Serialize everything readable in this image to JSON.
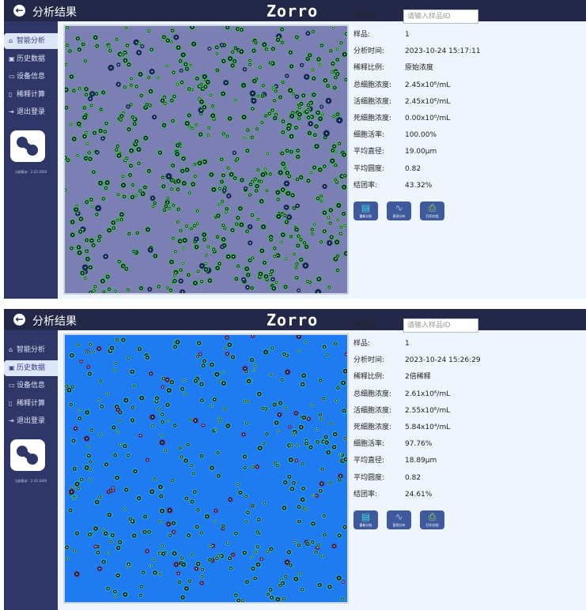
{
  "panels": [
    {
      "header": {
        "title": "分析结果",
        "brand": "Zorro"
      },
      "sidebar": {
        "items": [
          {
            "label": "智能分析",
            "icon": "home-icon"
          },
          {
            "label": "历史数据",
            "icon": "document-icon"
          },
          {
            "label": "设备信息",
            "icon": "device-icon"
          },
          {
            "label": "稀释计算",
            "icon": "calculator-icon"
          },
          {
            "label": "退出登录",
            "icon": "logout-icon"
          }
        ],
        "active": 0,
        "version": "当前版本：2.23.1020"
      },
      "image_tint": "#7b7fb3",
      "info": {
        "sample_id_label": "样品ID:",
        "sample_id_placeholder": "请输入样品ID",
        "rows": [
          {
            "label": "样品:",
            "value": "1"
          },
          {
            "label": "分析时间:",
            "value": "2023-10-24 15:17:11"
          },
          {
            "label": "稀释比例:",
            "value": "原始浓度"
          },
          {
            "label": "总细胞浓度:",
            "value": "2.45x10⁶/mL"
          },
          {
            "label": "活细胞浓度:",
            "value": "2.45x10⁶/mL"
          },
          {
            "label": "死细胞浓度:",
            "value": "0.00x10⁰/mL"
          },
          {
            "label": "细胞活率:",
            "value": "100.00%"
          },
          {
            "label": "平均直径:",
            "value": "19.00μm"
          },
          {
            "label": "平均圆度:",
            "value": "0.82"
          },
          {
            "label": "结团率:",
            "value": "43.32%"
          }
        ]
      },
      "buttons": [
        {
          "label": "重新分析",
          "icon": "reanalyze-icon"
        },
        {
          "label": "直径分布",
          "icon": "chart-icon"
        },
        {
          "label": "打印文档",
          "icon": "printer-icon"
        }
      ]
    },
    {
      "header": {
        "title": "分析结果",
        "brand": "Zorro"
      },
      "sidebar": {
        "items": [
          {
            "label": "智能分析",
            "icon": "home-icon"
          },
          {
            "label": "历史数据",
            "icon": "document-icon"
          },
          {
            "label": "设备信息",
            "icon": "device-icon"
          },
          {
            "label": "稀释计算",
            "icon": "calculator-icon"
          },
          {
            "label": "退出登录",
            "icon": "logout-icon"
          }
        ],
        "active": 1,
        "version": "当前版本：2.23.1020"
      },
      "image_tint": "#1e7cf0",
      "info": {
        "sample_id_label": "样品ID:",
        "sample_id_placeholder": "请输入样品ID",
        "rows": [
          {
            "label": "样品:",
            "value": "1"
          },
          {
            "label": "分析时间:",
            "value": "2023-10-24 15:26:29"
          },
          {
            "label": "稀释比例:",
            "value": "2倍稀释"
          },
          {
            "label": "总细胞浓度:",
            "value": "2.61x10⁶/mL"
          },
          {
            "label": "活细胞浓度:",
            "value": "2.55x10⁶/mL"
          },
          {
            "label": "死细胞浓度:",
            "value": "5.84x10⁴/mL"
          },
          {
            "label": "细胞活率:",
            "value": "97.76%"
          },
          {
            "label": "平均直径:",
            "value": "18.89μm"
          },
          {
            "label": "平均圆度:",
            "value": "0.82"
          },
          {
            "label": "结团率:",
            "value": "24.61%"
          }
        ]
      },
      "buttons": [
        {
          "label": "重新分析",
          "icon": "reanalyze-icon"
        },
        {
          "label": "直径分布",
          "icon": "chart-icon"
        },
        {
          "label": "打印文档",
          "icon": "printer-icon"
        }
      ]
    }
  ]
}
